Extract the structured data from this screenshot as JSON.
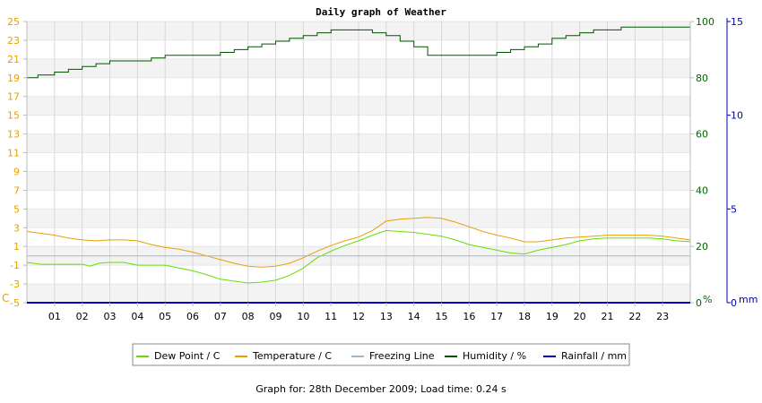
{
  "footer": {
    "prefix": "Graph for: ",
    "date": "28th December 2009",
    "sep": "; Load time: ",
    "load_time": "0.24 s"
  },
  "chart_data": {
    "type": "line",
    "title": "Daily graph of Weather",
    "x_ticks": [
      "01",
      "02",
      "03",
      "04",
      "05",
      "06",
      "07",
      "08",
      "09",
      "10",
      "11",
      "12",
      "13",
      "14",
      "15",
      "16",
      "17",
      "18",
      "19",
      "20",
      "21",
      "22",
      "23"
    ],
    "x_range_hours": [
      0,
      24
    ],
    "left_axis": {
      "unit_label": "C",
      "range": [
        -5,
        25
      ],
      "ticks": [
        "25",
        "23",
        "21",
        "19",
        "17",
        "15",
        "13",
        "11",
        "9",
        "7",
        "5",
        "3",
        "1",
        "-1",
        "-3",
        "-5"
      ],
      "color": "#e8a000"
    },
    "right_axis_humidity": {
      "unit_label": "%",
      "range": [
        0,
        100
      ],
      "ticks": [
        "100",
        "80",
        "60",
        "40",
        "20",
        "0"
      ],
      "color": "#006400"
    },
    "right_axis_rain": {
      "unit_label": "mm",
      "range": [
        0,
        15
      ],
      "ticks": [
        "15",
        "10",
        "5",
        "0"
      ],
      "color": "#0000aa"
    },
    "grid": true,
    "legend_position": "bottom",
    "series": [
      {
        "name": "Dew Point / C",
        "axis": "left",
        "color": "#66dd00",
        "x": [
          0,
          0.5,
          1,
          1.5,
          2,
          2.3,
          2.6,
          3,
          3.5,
          4,
          4.5,
          5,
          5.5,
          6,
          6.5,
          7,
          7.5,
          8,
          8.5,
          9,
          9.5,
          10,
          10.5,
          11,
          11.5,
          12,
          12.5,
          13,
          13.5,
          14,
          14.5,
          15,
          15.5,
          16,
          16.5,
          17,
          17.5,
          18,
          18.5,
          19,
          19.5,
          20,
          20.5,
          21,
          21.5,
          22,
          22.5,
          23,
          23.5,
          24
        ],
        "y": [
          -0.7,
          -0.9,
          -0.9,
          -0.9,
          -0.9,
          -1.1,
          -0.8,
          -0.7,
          -0.7,
          -1.0,
          -1.0,
          -1.0,
          -1.3,
          -1.6,
          -2.0,
          -2.5,
          -2.7,
          -2.9,
          -2.8,
          -2.6,
          -2.1,
          -1.3,
          -0.2,
          0.5,
          1.1,
          1.6,
          2.2,
          2.7,
          2.6,
          2.5,
          2.3,
          2.1,
          1.7,
          1.2,
          0.9,
          0.6,
          0.3,
          0.2,
          0.6,
          0.9,
          1.2,
          1.6,
          1.8,
          1.9,
          1.9,
          1.9,
          1.9,
          1.8,
          1.6,
          1.5
        ]
      },
      {
        "name": "Temperature / C",
        "axis": "left",
        "color": "#e8a000",
        "x": [
          0,
          0.5,
          1,
          1.5,
          2,
          2.5,
          3,
          3.5,
          4,
          4.5,
          5,
          5.5,
          6,
          6.5,
          7,
          7.5,
          8,
          8.5,
          9,
          9.5,
          10,
          10.5,
          11,
          11.5,
          12,
          12.5,
          13,
          13.5,
          14,
          14.5,
          15,
          15.5,
          16,
          16.5,
          17,
          17.5,
          18,
          18.5,
          19,
          19.5,
          20,
          20.5,
          21,
          21.5,
          22,
          22.5,
          23,
          23.5,
          24
        ],
        "y": [
          2.6,
          2.4,
          2.2,
          1.9,
          1.7,
          1.6,
          1.7,
          1.7,
          1.6,
          1.2,
          0.9,
          0.7,
          0.4,
          0.0,
          -0.4,
          -0.8,
          -1.1,
          -1.2,
          -1.1,
          -0.8,
          -0.2,
          0.5,
          1.1,
          1.6,
          2.0,
          2.7,
          3.7,
          3.9,
          4.0,
          4.1,
          4.0,
          3.6,
          3.1,
          2.6,
          2.2,
          1.9,
          1.5,
          1.5,
          1.7,
          1.9,
          2.0,
          2.1,
          2.2,
          2.2,
          2.2,
          2.2,
          2.1,
          1.9,
          1.7
        ]
      },
      {
        "name": "Freezing Line",
        "axis": "left",
        "color": "#a0b8cc",
        "x": [
          0,
          24
        ],
        "y": [
          0,
          0
        ]
      },
      {
        "name": "Humidity / %",
        "axis": "right_humidity",
        "color": "#005500",
        "x": [
          0,
          0.4,
          1,
          1.5,
          2,
          2.5,
          3,
          3.5,
          4,
          4.5,
          5,
          5.5,
          6,
          6.5,
          7,
          7.5,
          8,
          8.5,
          9,
          9.5,
          10,
          10.5,
          11,
          11.5,
          12,
          12.5,
          13,
          13.5,
          14,
          14.5,
          15,
          15.5,
          16,
          16.5,
          17,
          17.5,
          18,
          18.5,
          19,
          19.5,
          20,
          20.5,
          21,
          21.5,
          22,
          22.5,
          23,
          23.5,
          24
        ],
        "y": [
          80,
          81,
          82,
          83,
          84,
          85,
          86,
          86,
          86,
          87,
          88,
          88,
          88,
          88,
          89,
          90,
          91,
          92,
          93,
          94,
          95,
          96,
          97,
          97,
          97,
          96,
          95,
          93,
          91,
          88,
          88,
          88,
          88,
          88,
          89,
          90,
          91,
          92,
          94,
          95,
          96,
          97,
          97,
          98,
          98,
          98,
          98,
          98,
          98
        ]
      },
      {
        "name": "Rainfall / mm",
        "axis": "right_rain",
        "color": "#0000cc",
        "x": [
          0,
          24
        ],
        "y": [
          0,
          0
        ]
      }
    ]
  }
}
